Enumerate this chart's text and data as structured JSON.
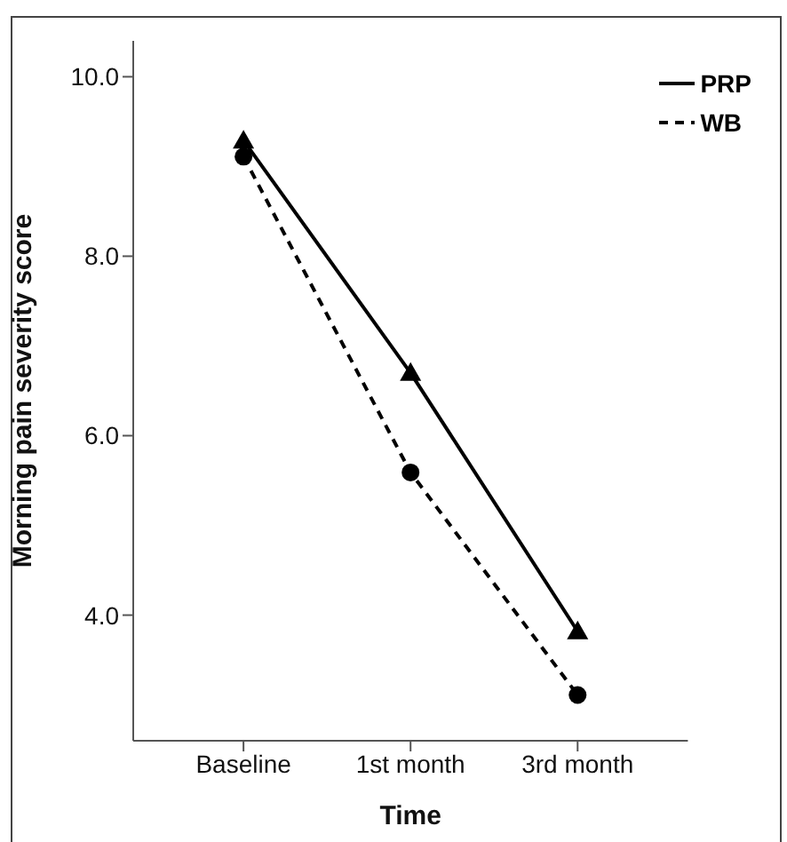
{
  "chart_data": {
    "type": "line",
    "xlabel": "Time",
    "ylabel": "Morning pain severity score",
    "categories": [
      "Baseline",
      "1st month",
      "3rd month"
    ],
    "series": [
      {
        "name": "PRP",
        "color": "#000000",
        "values": [
          9.29,
          6.7,
          3.82
        ],
        "marker": "triangle",
        "line_style": "solid"
      },
      {
        "name": "WB",
        "color": "#000000",
        "values": [
          9.11,
          5.59,
          3.11
        ],
        "marker": "circle",
        "line_style": "dashed"
      }
    ],
    "ylim": [
      2.6,
      10.4
    ],
    "yticks": [
      {
        "value": 4,
        "label": "4.0"
      },
      {
        "value": 6,
        "label": "6.0"
      },
      {
        "value": 8,
        "label": "8.0"
      },
      {
        "value": 10,
        "label": "10.0"
      }
    ],
    "legend": "top right",
    "grid": false
  }
}
